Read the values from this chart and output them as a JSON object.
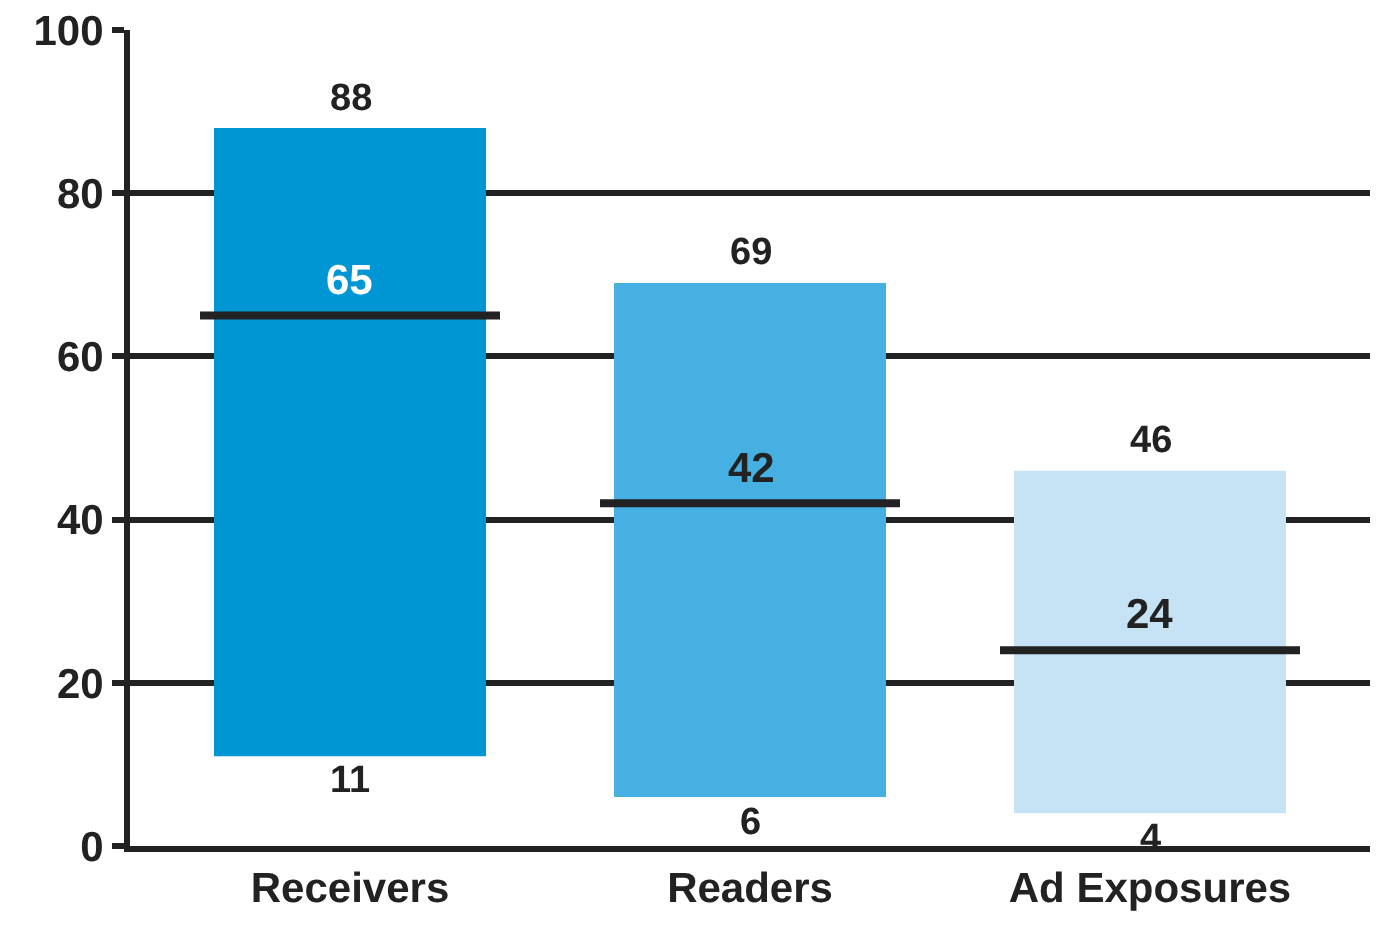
{
  "chart_data": {
    "type": "bar",
    "categories": [
      "Receivers",
      "Readers",
      "Ad Exposures"
    ],
    "series": [
      {
        "colors": [
          "#0095d3",
          "#45b0e1",
          "#c5e3f4"
        ],
        "base": [
          11,
          6,
          4
        ],
        "values": [
          77,
          63,
          42
        ]
      },
      {
        "type": "box",
        "color": "#222222",
        "boxes": [
          {
            "low": 65,
            "q1": 65,
            "median": 65,
            "q3": 65,
            "high": 65
          },
          {
            "low": 42,
            "q1": 42,
            "median": 42,
            "q3": 42,
            "high": 42
          },
          {
            "low": 24,
            "q1": 24,
            "median": 24,
            "q3": 24,
            "high": 24
          }
        ]
      }
    ],
    "annotations": [
      {
        "text": "88",
        "x": "Receivers",
        "y": 88
      },
      {
        "text": "65",
        "x": "Receivers",
        "y": 65
      },
      {
        "text": "11",
        "x": "Receivers",
        "y": 11
      },
      {
        "text": "69",
        "x": "Readers",
        "y": 69
      },
      {
        "text": "42",
        "x": "Readers",
        "y": 42
      },
      {
        "text": "6",
        "x": "Readers",
        "y": 6
      },
      {
        "text": "46",
        "x": "Ad Exposures",
        "y": 46
      },
      {
        "text": "24",
        "x": "Ad Exposures",
        "y": 24
      },
      {
        "text": "4",
        "x": "Ad Exposures",
        "y": 4
      }
    ],
    "ylim": [
      0,
      100
    ],
    "yticks": [
      0,
      20,
      40,
      60,
      80,
      100
    ],
    "grid": "y"
  }
}
